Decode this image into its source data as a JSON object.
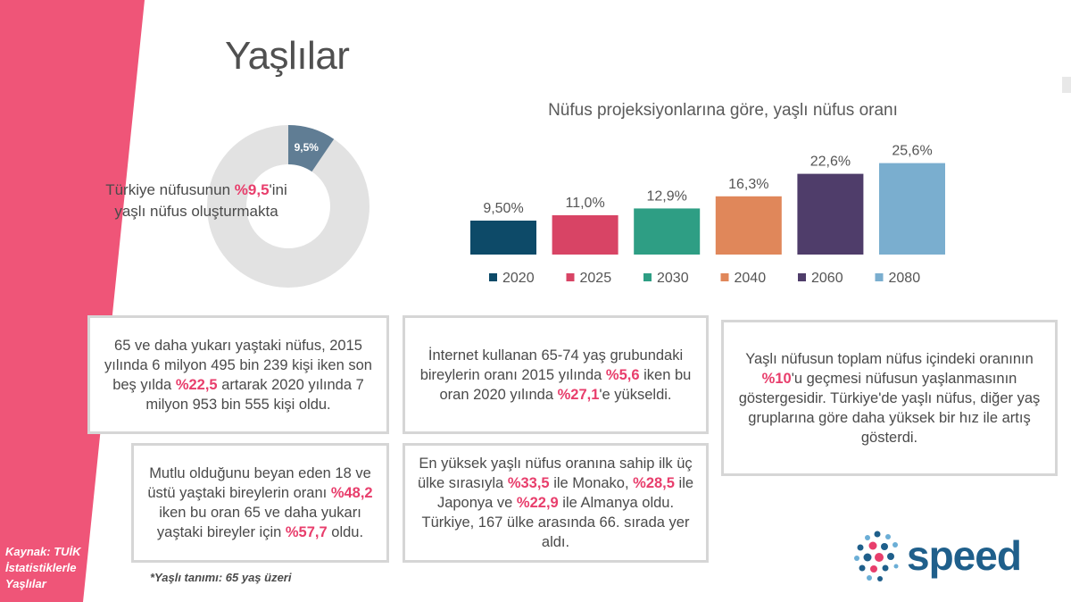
{
  "page": {
    "title": "Yaşlılar",
    "source": [
      "Kaynak: TUİK",
      "İstatistiklerle",
      "Yaşlılar"
    ],
    "footnote": "*Yaşlı tanımı: 65 yaş üzeri"
  },
  "donut": {
    "value": 9.5,
    "label": "9,5%",
    "text_before": "Türkiye nüfusunun ",
    "highlight": "%9,5",
    "text_after": "'ini yaşlı nüfus oluşturmakta",
    "colors": {
      "value": "#607d94",
      "rest": "#e2e2e2"
    }
  },
  "chart_data": {
    "type": "bar",
    "title": "Nüfus projeksiyonlarına göre, yaşlı nüfus oranı",
    "xlabel": "",
    "ylabel": "",
    "categories": [
      "2020",
      "2025",
      "2030",
      "2040",
      "2060",
      "2080"
    ],
    "values": [
      9.5,
      11.0,
      12.9,
      16.3,
      22.6,
      25.6
    ],
    "value_labels": [
      "9,50%",
      "11,0%",
      "12,9%",
      "16,3%",
      "22,6%",
      "25,6%"
    ],
    "colors": [
      "#0d4a68",
      "#d84465",
      "#2e9e84",
      "#e0875a",
      "#4f3d6a",
      "#7aaecf"
    ],
    "ylim": [
      0,
      30
    ],
    "grid": false,
    "legend": "bottom"
  },
  "boxes": {
    "elderly_count": {
      "p1": "65 ve daha yukarı yaştaki nüfus, 2015 yılında 6 milyon 495 bin 239 kişi iken son beş yılda ",
      "h1": "%22,5",
      "p2": " artarak 2020 yılında 7 milyon 953 bin 555 kişi oldu."
    },
    "internet": {
      "p1": "İnternet kullanan 65-74 yaş grubundaki bireylerin oranı 2015 yılında ",
      "h1": "%5,6",
      "p2": " iken bu oran 2020 yılında ",
      "h2": "%27,1",
      "p3": "'e yükseldi."
    },
    "aging": {
      "p1": "Yaşlı nüfusun toplam nüfus içindeki oranının ",
      "h1": "%10",
      "p2": "'u geçmesi nüfusun yaşlanmasının göstergesidir. Türkiye'de yaşlı nüfus, diğer yaş gruplarına göre daha yüksek bir hız ile artış gösterdi."
    },
    "happiness": {
      "p1": "Mutlu olduğunu beyan eden 18 ve üstü yaştaki bireylerin oranı ",
      "h1": "%48,2",
      "p2": " iken bu oran 65 ve daha yukarı yaştaki bireyler için ",
      "h2": "%57,7",
      "p3": " oldu."
    },
    "ranking": {
      "p1": "En yüksek yaşlı nüfus oranına sahip ilk üç ülke sırasıyla ",
      "h1": "%33,5",
      "p2": " ile Monako, ",
      "h2": "%28,5",
      "p3": " ile Japonya ve ",
      "h3": "%22,9",
      "p4": " ile Almanya oldu. Türkiye, 167 ülke arasında 66. sırada yer aldı."
    }
  },
  "logo": {
    "text": "speed",
    "color": "#1f5f8b",
    "dot_colors": [
      "#e83e6c",
      "#1f5f8b",
      "#6baed6"
    ]
  },
  "theme": {
    "stripe_color": "#ef5578",
    "highlight_color": "#e83e6c"
  }
}
